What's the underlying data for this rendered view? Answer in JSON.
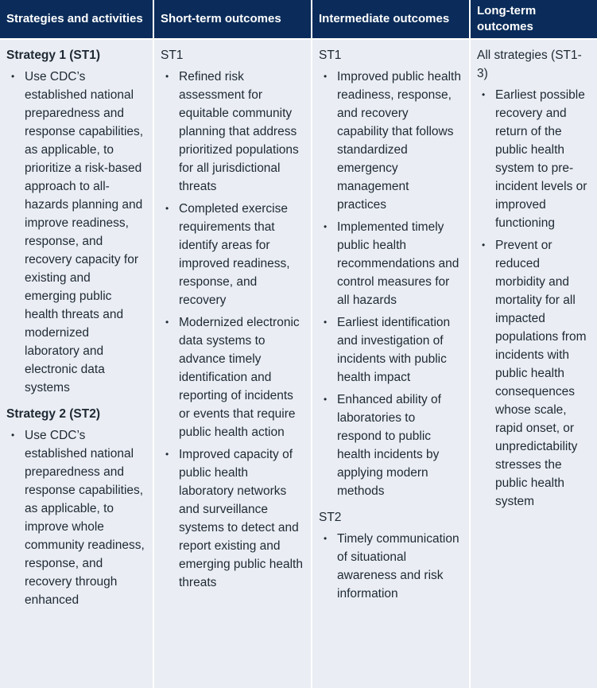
{
  "header": [
    "Strategies and activities",
    "Short-term outcomes",
    "Intermediate outcomes",
    "Long-term outcomes"
  ],
  "columns": [
    {
      "groups": [
        {
          "label": "Strategy 1 (ST1)",
          "items": [
            "Use CDC’s established national preparedness and response capabilities, as applicable, to prioritize a risk-based approach to all-hazards planning and improve readiness, response, and recovery capacity for existing and emerging public health threats and modernized laboratory and electronic data systems"
          ]
        },
        {
          "label": "Strategy 2 (ST2)",
          "items": [
            "Use CDC’s established national preparedness and response capabilities, as applicable, to improve whole community readiness, response, and recovery through enhanced"
          ]
        }
      ]
    },
    {
      "groups": [
        {
          "label": "ST1",
          "items": [
            "Refined risk assessment for equitable community planning that address prioritized populations for all jurisdictional threats",
            "Completed exercise requirements that identify areas for improved readiness, response, and recovery",
            "Modernized electronic data systems to advance timely identification and reporting of incidents or events that require public health action",
            "Improved capacity of public health laboratory networks and surveillance systems to detect and report existing and emerging public health threats"
          ]
        }
      ]
    },
    {
      "groups": [
        {
          "label": "ST1",
          "items": [
            "Improved public health readiness, response, and recovery capability that follows standardized emergency management practices",
            "Implemented timely public health recommendations and control measures for all hazards",
            "Earliest identification and investigation of incidents with public health impact",
            "Enhanced ability of laboratories to respond to public health incidents by applying modern methods"
          ]
        },
        {
          "label": "ST2",
          "items": [
            "Timely communication of situational awareness and risk information"
          ]
        }
      ]
    },
    {
      "groups": [
        {
          "label": "All strategies (ST1-3)",
          "items": [
            "Earliest possible recovery and return of the public health system to pre-incident levels or improved functioning",
            "Prevent or reduced morbidity and mortality for all impacted populations from incidents with public health consequences whose scale, rapid onset, or unpredictability stresses the public health system"
          ]
        }
      ]
    }
  ]
}
